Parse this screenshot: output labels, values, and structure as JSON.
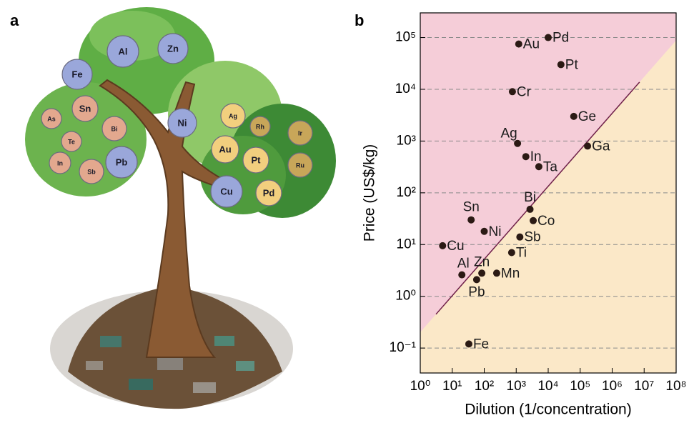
{
  "panel_labels": [
    "a",
    "b"
  ],
  "illustration": {
    "elements": [
      "Al",
      "Zn",
      "Fe",
      "Sn",
      "As",
      "Bi",
      "Te",
      "Ni",
      "Ag",
      "Rh",
      "Ir",
      "Au",
      "Pt",
      "Ru",
      "In",
      "Sb",
      "Pb",
      "Cu",
      "Pd"
    ]
  },
  "chart_data": {
    "type": "scatter",
    "x_label": "Dilution (1/concentration)",
    "y_label": "Price (US$/kg)",
    "log_x": true,
    "log_y": true,
    "xlim": [
      1,
      100000000
    ],
    "ylim": [
      0.033,
      300000
    ],
    "xticks": [
      {
        "value": 1,
        "label": "10⁰"
      },
      {
        "value": 10,
        "label": "10¹"
      },
      {
        "value": 100,
        "label": "10²"
      },
      {
        "value": 1000,
        "label": "10³"
      },
      {
        "value": 10000,
        "label": "10⁴"
      },
      {
        "value": 100000,
        "label": "10⁵"
      },
      {
        "value": 1000000,
        "label": "10⁶"
      },
      {
        "value": 10000000,
        "label": "10⁷"
      },
      {
        "value": 100000000,
        "label": "10⁸"
      }
    ],
    "yticks": [
      {
        "value": 0.1,
        "label": "10⁻¹"
      },
      {
        "value": 1,
        "label": "10⁰"
      },
      {
        "value": 10,
        "label": "10¹"
      },
      {
        "value": 100,
        "label": "10²"
      },
      {
        "value": 1000,
        "label": "10³"
      },
      {
        "value": 10000,
        "label": "10⁴"
      },
      {
        "value": 100000,
        "label": "10⁵"
      }
    ],
    "grid": true,
    "color": "#2b1a14",
    "upper_region_color": "#f5cdd8",
    "lower_region_color": "#fbe8c8",
    "fit_line": {
      "color": "#6e1f48",
      "x": [
        3.1,
        7200000
      ],
      "values": [
        0.45,
        13800
      ]
    },
    "points": {
      "labels": [
        "Pd",
        "Au",
        "Pt",
        "Cr",
        "Ge",
        "Ag",
        "Ga",
        "In",
        "Ta",
        "Bi",
        "Co",
        "Sn",
        "Ni",
        "Sb",
        "Cu",
        "Ti",
        "Al",
        "Zn",
        "Mn",
        "Pb",
        "Fe"
      ],
      "x": [
        10000,
        1200,
        25000,
        760,
        63000,
        1100,
        170000,
        2000,
        5100,
        2700,
        3400,
        39,
        100,
        1300,
        5,
        720,
        20,
        84,
        245,
        58,
        33
      ],
      "values": [
        100000,
        75000,
        30000,
        9000,
        3000,
        900,
        800,
        500,
        320,
        48,
        29,
        30,
        18,
        14,
        9.5,
        7,
        2.6,
        2.8,
        2.8,
        2.1,
        0.12
      ]
    }
  }
}
